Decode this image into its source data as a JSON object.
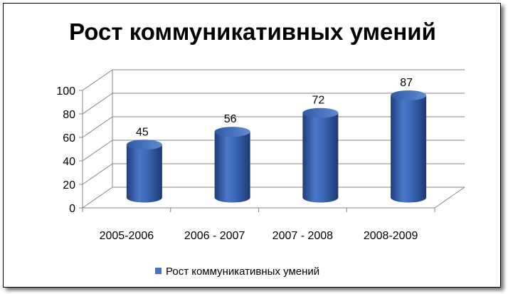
{
  "chart_data": {
    "type": "bar",
    "title": "Рост коммуникативных умений",
    "categories": [
      "2005-2006",
      "2006 - 2007",
      "2007 - 2008",
      "2008-2009"
    ],
    "series": [
      {
        "name": "Рост коммуникативных умений",
        "values": [
          45,
          56,
          72,
          87
        ],
        "color": "#4472c4"
      }
    ],
    "ylim": [
      0,
      100
    ],
    "yticks": [
      0,
      20,
      40,
      60,
      80,
      100
    ],
    "data_labels": true,
    "grid": true,
    "legend": "bottom",
    "style": "3d-cylinder"
  }
}
